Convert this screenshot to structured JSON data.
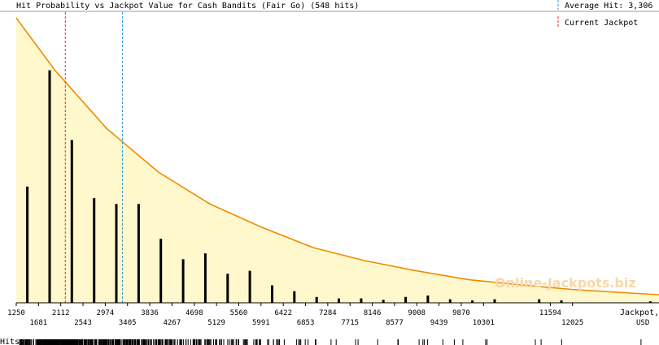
{
  "chart_data": {
    "type": "bar",
    "title": "Hit Probability vs Jackpot Value for Cash Bandits (Fair Go) (548 hits)",
    "xlabel": "Jackpot, USD",
    "ylabel": "",
    "hits_label": "Hits",
    "watermark": "Online-Jackpots.biz",
    "xlim": [
      1250,
      13700
    ],
    "legend": [
      {
        "name": "Average Hit: 3,306",
        "style": "dashed",
        "color": "#3399cc"
      },
      {
        "name": "Current Jackpot",
        "style": "dashed",
        "color": "#cc3333"
      }
    ],
    "average_hit": 3306,
    "current_jackpot": 2200,
    "x_ticks_top": [
      "1250",
      "2112",
      "2974",
      "3836",
      "4698",
      "5560",
      "6422",
      "7284",
      "8146",
      "9008",
      "9870",
      "11594"
    ],
    "x_ticks_bottom": [
      "1681",
      "2543",
      "3405",
      "4267",
      "5129",
      "5991",
      "6853",
      "7715",
      "8577",
      "9439",
      "10301",
      "12025"
    ],
    "bars": {
      "x": [
        1465,
        1896,
        2327,
        2758,
        3189,
        3620,
        4051,
        4482,
        4913,
        5344,
        5775,
        6206,
        6637,
        7068,
        7499,
        7930,
        8361,
        8792,
        9223,
        9654,
        10085,
        10516,
        11378,
        11809,
        13533
      ],
      "values": [
        0.4,
        0.8,
        0.56,
        0.36,
        0.34,
        0.34,
        0.22,
        0.15,
        0.17,
        0.1,
        0.11,
        0.06,
        0.04,
        0.02,
        0.015,
        0.015,
        0.01,
        0.02,
        0.025,
        0.012,
        0.008,
        0.012,
        0.012,
        0.008,
        0.005
      ]
    },
    "fit_curve": {
      "x": [
        1250,
        2000,
        3000,
        4000,
        5000,
        6000,
        7000,
        8000,
        9000,
        10000,
        11000,
        12000,
        13000,
        13700
      ],
      "values": [
        0.98,
        0.8,
        0.6,
        0.45,
        0.34,
        0.26,
        0.19,
        0.145,
        0.11,
        0.08,
        0.062,
        0.046,
        0.035,
        0.028
      ]
    },
    "grid": false,
    "legend_position": "top-right"
  }
}
